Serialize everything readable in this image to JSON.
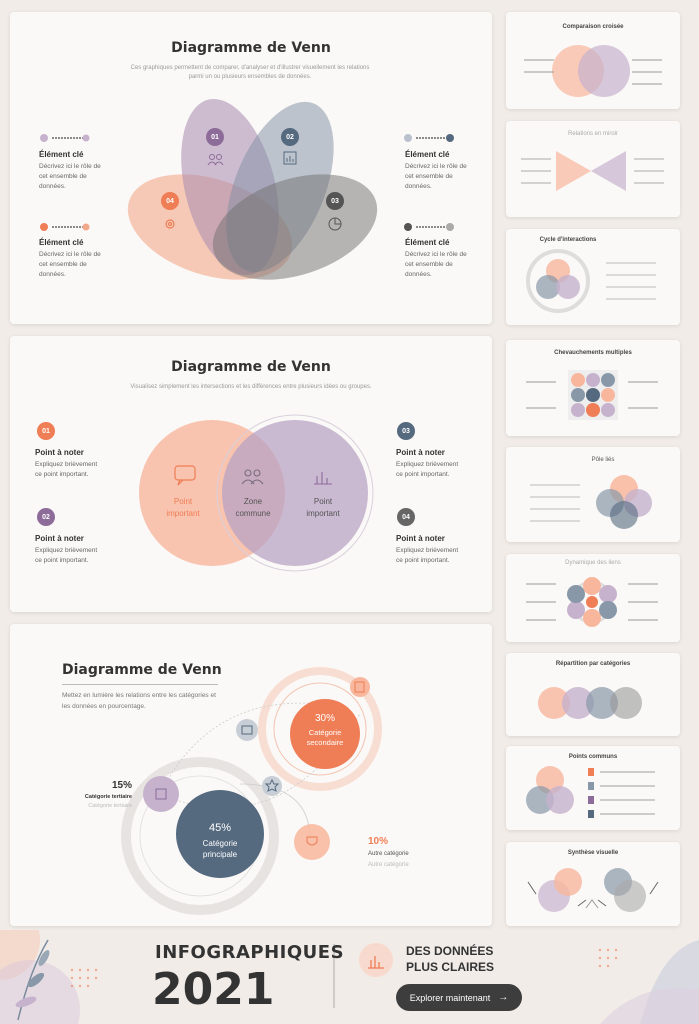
{
  "slide1": {
    "title": "Diagramme de Venn",
    "subtitle": "Ces graphiques permettent de comparer, d'analyser et d'illustrer visuellement les relations",
    "subtitle2": "parmi un ou plusieurs ensembles de données.",
    "petals": [
      "01",
      "02",
      "03",
      "04"
    ],
    "items": [
      {
        "title": "Élément clé",
        "desc": "Décrivez ici le rôle de cet ensemble de données."
      },
      {
        "title": "Élément clé",
        "desc": "Décrivez ici le rôle de cet ensemble de données."
      },
      {
        "title": "Élément clé",
        "desc": "Décrivez ici le rôle de cet ensemble de données."
      },
      {
        "title": "Élément clé",
        "desc": "Décrivez ici le rôle de cet ensemble de données."
      }
    ]
  },
  "slide2": {
    "title": "Diagramme de Venn",
    "subtitle": "Visualisez simplement les intersections et les différences entre plusieurs idées ou groupes.",
    "left_label": "Point important",
    "center_label": "Zone commune",
    "right_label": "Point important",
    "points": [
      {
        "num": "01",
        "title": "Point à noter",
        "desc": "Expliquez brièvement ce point important."
      },
      {
        "num": "02",
        "title": "Point à noter",
        "desc": "Expliquez brièvement ce point important."
      },
      {
        "num": "03",
        "title": "Point à noter",
        "desc": "Expliquez brièvement ce point important."
      },
      {
        "num": "04",
        "title": "Point à noter",
        "desc": "Expliquez brièvement ce point important."
      }
    ]
  },
  "slide3": {
    "title": "Diagramme de Venn",
    "subtitle": "Mettez en lumière les relations entre les catégories et les données en pourcentage.",
    "main": {
      "pct": "45%",
      "label": "Catégorie principale"
    },
    "secondary": {
      "pct": "30%",
      "label": "Catégorie secondaire"
    },
    "tertiary": {
      "pct": "15%",
      "label": "Catégorie tertiaire",
      "sub": "Catégorie tertiaire"
    },
    "other": {
      "pct": "10%",
      "label": "Autre catégorie",
      "sub": "Autre catégorie"
    }
  },
  "thumbs": [
    "Comparaison croisée",
    "Relations en miroir",
    "Cycle d'interactions",
    "Chevauchements multiples",
    "Pôle liés",
    "Dynamique des liens",
    "Répartition par catégories",
    "Points communs",
    "Synthèse visuelle"
  ],
  "footer": {
    "heading": "INFOGRAPHIQUES",
    "year": "2021",
    "tagline1": "DES DONNÉES",
    "tagline2": "PLUS CLAIRES",
    "cta": "Explorer maintenant",
    "colors": {
      "orange": "#ef7d55",
      "purple": "#8d6c9a",
      "slate": "#55697f",
      "gray": "#6f6f6f"
    }
  }
}
